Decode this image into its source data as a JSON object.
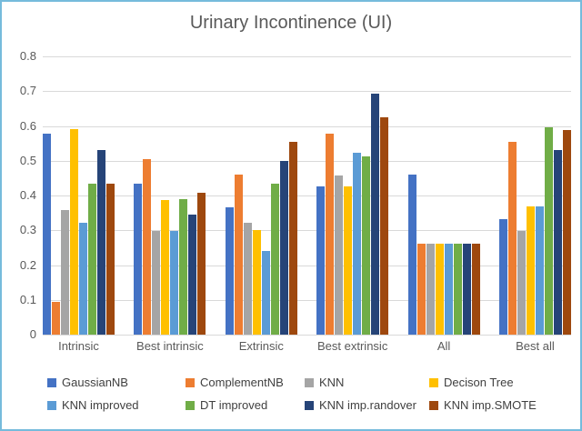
{
  "frame": {
    "border_color": "#76bbdc",
    "background": "#ffffff"
  },
  "styles": {
    "gridline_color": "#d9d9d9",
    "title_color": "#595959",
    "axis_text_color": "#595959",
    "legend_text_color": "#404040"
  },
  "chart_data": {
    "type": "bar",
    "title": "Urinary Incontinence (UI)",
    "categories": [
      "Intrinsic",
      "Best intrinsic",
      "Extrinsic",
      "Best extrinsic",
      "All",
      "Best all"
    ],
    "series": [
      {
        "name": "GaussianNB",
        "color": "#4472c4",
        "values": [
          0.578,
          0.435,
          0.367,
          0.425,
          0.46,
          0.332
        ]
      },
      {
        "name": "ComplementNB",
        "color": "#ed7d31",
        "values": [
          0.095,
          0.504,
          0.46,
          0.578,
          0.262,
          0.554
        ]
      },
      {
        "name": "KNN",
        "color": "#a5a5a5",
        "values": [
          0.357,
          0.297,
          0.322,
          0.458,
          0.262,
          0.297
        ]
      },
      {
        "name": "Decison Tree",
        "color": "#ffc000",
        "values": [
          0.591,
          0.386,
          0.3,
          0.426,
          0.262,
          0.368
        ]
      },
      {
        "name": "KNN improved",
        "color": "#5b9bd5",
        "values": [
          0.322,
          0.297,
          0.24,
          0.524,
          0.262,
          0.368
        ]
      },
      {
        "name": "DT improved",
        "color": "#70ad47",
        "values": [
          0.435,
          0.389,
          0.435,
          0.513,
          0.262,
          0.595
        ]
      },
      {
        "name": "KNN imp.randover",
        "color": "#264478",
        "values": [
          0.53,
          0.345,
          0.5,
          0.693,
          0.262,
          0.53
        ]
      },
      {
        "name": "KNN imp.SMOTE",
        "color": "#9e480e",
        "values": [
          0.435,
          0.409,
          0.555,
          0.624,
          0.262,
          0.589
        ]
      }
    ],
    "ylim": [
      0,
      0.8
    ],
    "y_ticks": [
      "0.8",
      "0.7",
      "0.6",
      "0.5",
      "0.4",
      "0.3",
      "0.2",
      "0.1",
      "0"
    ],
    "grid": "horizontal",
    "legend_position": "bottom",
    "legend_rows": 2
  }
}
